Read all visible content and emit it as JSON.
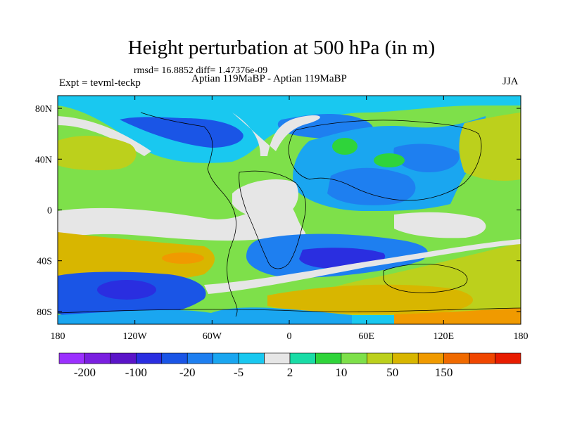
{
  "title": "Height perturbation at 500 hPa (in m)",
  "stats": "rmsd= 16.8852  diff= 1.47376e-09",
  "experiment": "Expt = tevml-teckp",
  "subtitle": "Aptian   119MaBP - Aptian   119MaBP",
  "season": "JJA",
  "axes": {
    "lon_ticks": [
      {
        "lon": -180,
        "label": "180"
      },
      {
        "lon": -120,
        "label": "120W"
      },
      {
        "lon": -60,
        "label": "60W"
      },
      {
        "lon": 0,
        "label": "0"
      },
      {
        "lon": 60,
        "label": "60E"
      },
      {
        "lon": 120,
        "label": "120E"
      },
      {
        "lon": 180,
        "label": "180"
      }
    ],
    "lat_ticks": [
      {
        "lat": 80,
        "label": "80N"
      },
      {
        "lat": 40,
        "label": "40N"
      },
      {
        "lat": 0,
        "label": "0"
      },
      {
        "lat": -40,
        "label": "40S"
      },
      {
        "lat": -80,
        "label": "80S"
      }
    ],
    "lon_range": [
      -180,
      180
    ],
    "lat_range": [
      -90,
      90
    ]
  },
  "colorbar": {
    "colors": [
      "#9b30ff",
      "#7a1fe0",
      "#5a14c8",
      "#2a2ee0",
      "#1a55e6",
      "#1e7ff0",
      "#1aa6f0",
      "#19c8f0",
      "#e6e6e6",
      "#19dca6",
      "#2fd43a",
      "#7ee04a",
      "#bcd01c",
      "#d8b600",
      "#f09a00",
      "#f06a00",
      "#f04600",
      "#e81c00"
    ],
    "labels": [
      {
        "boundary": 1,
        "text": "-200"
      },
      {
        "boundary": 3,
        "text": "-100"
      },
      {
        "boundary": 5,
        "text": "-20"
      },
      {
        "boundary": 7,
        "text": "-5"
      },
      {
        "boundary": 9,
        "text": "2"
      },
      {
        "boundary": 11,
        "text": "10"
      },
      {
        "boundary": 13,
        "text": "50"
      },
      {
        "boundary": 15,
        "text": "150"
      }
    ]
  }
}
